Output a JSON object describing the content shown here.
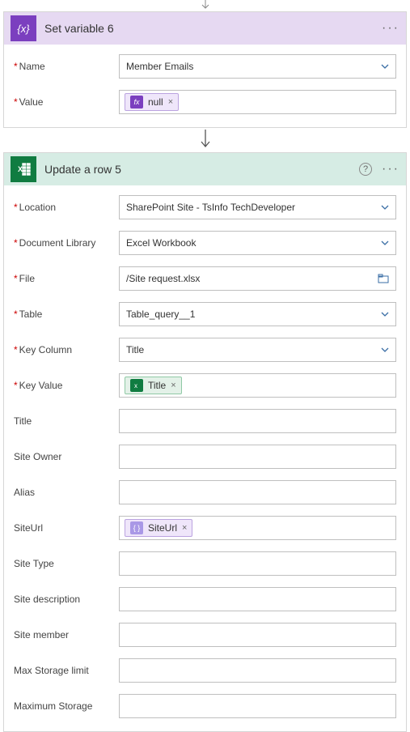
{
  "card1": {
    "title": "Set variable 6",
    "iconGlyph": "{x}",
    "bg": "#e6d9f2",
    "fields": {
      "name": {
        "label": "Name",
        "value": "Member Emails"
      },
      "value": {
        "label": "Value",
        "token": {
          "icon": "fx",
          "text": "null"
        }
      }
    }
  },
  "card2": {
    "title": "Update a row 5",
    "bg": "#d6ece4",
    "fields": [
      {
        "key": "location",
        "label": "Location",
        "type": "select",
        "value": "SharePoint Site - TsInfo TechDeveloper"
      },
      {
        "key": "doclib",
        "label": "Document Library",
        "type": "select",
        "value": "Excel Workbook"
      },
      {
        "key": "file",
        "label": "File",
        "type": "file",
        "value": "/Site request.xlsx"
      },
      {
        "key": "table",
        "label": "Table",
        "type": "select",
        "value": "Table_query__1"
      },
      {
        "key": "keycol",
        "label": "Key Column",
        "type": "select",
        "value": "Title"
      },
      {
        "key": "keyval",
        "label": "Key Value",
        "type": "token-green",
        "token": {
          "text": "Title"
        }
      },
      {
        "key": "title",
        "label": "Title",
        "type": "text",
        "value": ""
      },
      {
        "key": "siteowner",
        "label": "Site Owner",
        "type": "text",
        "value": ""
      },
      {
        "key": "alias",
        "label": "Alias",
        "type": "text",
        "value": ""
      },
      {
        "key": "siteurl",
        "label": "SiteUrl",
        "type": "token-purple",
        "token": {
          "text": "SiteUrl"
        }
      },
      {
        "key": "sitetype",
        "label": "Site Type",
        "type": "text",
        "value": ""
      },
      {
        "key": "sitedesc",
        "label": "Site description",
        "type": "text",
        "value": ""
      },
      {
        "key": "sitemember",
        "label": "Site member",
        "type": "text",
        "value": ""
      },
      {
        "key": "maxstorage",
        "label": "Max Storage limit",
        "type": "text",
        "value": ""
      },
      {
        "key": "maxstorage2",
        "label": "Maximum Storage",
        "type": "text",
        "value": ""
      }
    ]
  }
}
